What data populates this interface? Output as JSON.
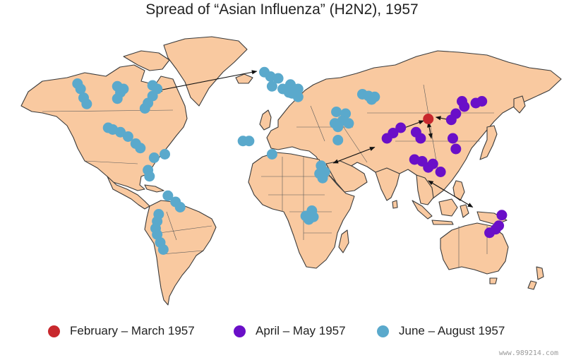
{
  "title": "Spread of “Asian Influenza” (H2N2), 1957",
  "colors": {
    "ocean": "#ffffff",
    "land": "#f9c9a0",
    "outline": "#3a3a3a",
    "feb_mar": "#c8282d",
    "apr_may": "#6a0fc8",
    "jun_aug": "#5aa9cc",
    "arrow": "#111111"
  },
  "legend": [
    {
      "key": "feb_mar",
      "label": "February – March 1957"
    },
    {
      "key": "apr_may",
      "label": "April – May 1957"
    },
    {
      "key": "jun_aug",
      "label": "June – August 1957"
    }
  ],
  "outbreaks": {
    "feb_mar": [
      {
        "lon": 105.0,
        "lat": 27.0
      }
    ],
    "apr_may": [
      {
        "lon": 136.0,
        "lat": 36.0
      },
      {
        "lon": 140.0,
        "lat": 37.0
      },
      {
        "lon": 127.0,
        "lat": 37.0
      },
      {
        "lon": 128.5,
        "lat": 34.0
      },
      {
        "lon": 123.0,
        "lat": 30.0
      },
      {
        "lon": 120.0,
        "lat": 26.5
      },
      {
        "lon": 87.0,
        "lat": 22.0
      },
      {
        "lon": 82.0,
        "lat": 19.0
      },
      {
        "lon": 78.0,
        "lat": 16.0
      },
      {
        "lon": 97.0,
        "lat": 19.5
      },
      {
        "lon": 100.0,
        "lat": 16.0
      },
      {
        "lon": 121.0,
        "lat": 16.0
      },
      {
        "lon": 123.0,
        "lat": 10.0
      },
      {
        "lon": 96.0,
        "lat": 4.0
      },
      {
        "lon": 101.0,
        "lat": 3.0
      },
      {
        "lon": 105.0,
        "lat": -0.5
      },
      {
        "lon": 108.0,
        "lat": 1.5
      },
      {
        "lon": 113.0,
        "lat": -3.0
      },
      {
        "lon": 153.0,
        "lat": -27.5
      },
      {
        "lon": 151.0,
        "lat": -33.5
      },
      {
        "lon": 149.0,
        "lat": -35.5
      },
      {
        "lon": 145.0,
        "lat": -37.5
      }
    ],
    "jun_aug": [
      {
        "lon": -75.0,
        "lat": 46.0
      },
      {
        "lon": -72.0,
        "lat": 44.0
      },
      {
        "lon": -124.0,
        "lat": 47.0
      },
      {
        "lon": -122.0,
        "lat": 44.0
      },
      {
        "lon": -120.0,
        "lat": 39.0
      },
      {
        "lon": -118.0,
        "lat": 35.5
      },
      {
        "lon": -98.0,
        "lat": 45.5
      },
      {
        "lon": -96.0,
        "lat": 42.0
      },
      {
        "lon": -98.0,
        "lat": 38.5
      },
      {
        "lon": -94.0,
        "lat": 44.0
      },
      {
        "lon": -75.0,
        "lat": 40.0
      },
      {
        "lon": -78.0,
        "lat": 36.0
      },
      {
        "lon": -80.0,
        "lat": 33.0
      },
      {
        "lon": -104.0,
        "lat": 22.0
      },
      {
        "lon": -101.0,
        "lat": 21.0
      },
      {
        "lon": -96.0,
        "lat": 19.5
      },
      {
        "lon": -91.0,
        "lat": 17.0
      },
      {
        "lon": -86.0,
        "lat": 13.0
      },
      {
        "lon": -83.0,
        "lat": 10.5
      },
      {
        "lon": -74.0,
        "lat": 5.0
      },
      {
        "lon": -67.0,
        "lat": 7.0
      },
      {
        "lon": -78.0,
        "lat": -2.0
      },
      {
        "lon": -77.0,
        "lat": -5.5
      },
      {
        "lon": -65.0,
        "lat": -16.5
      },
      {
        "lon": -60.0,
        "lat": -20.0
      },
      {
        "lon": -57.0,
        "lat": -23.0
      },
      {
        "lon": -71.0,
        "lat": -27.0
      },
      {
        "lon": -72.0,
        "lat": -31.0
      },
      {
        "lon": -73.0,
        "lat": -35.0
      },
      {
        "lon": -72.0,
        "lat": -38.5
      },
      {
        "lon": -70.0,
        "lat": -43.0
      },
      {
        "lon": -68.0,
        "lat": -47.0
      },
      {
        "lon": -2.0,
        "lat": 53.5
      },
      {
        "lon": 2.0,
        "lat": 51.0
      },
      {
        "lon": 7.0,
        "lat": 50.0
      },
      {
        "lon": 3.0,
        "lat": 45.5
      },
      {
        "lon": 15.0,
        "lat": 46.5
      },
      {
        "lon": 10.0,
        "lat": 44.0
      },
      {
        "lon": 14.0,
        "lat": 42.0
      },
      {
        "lon": 20.0,
        "lat": 44.0
      },
      {
        "lon": 20.0,
        "lat": 39.5
      },
      {
        "lon": 16.0,
        "lat": 41.5
      },
      {
        "lon": 45.0,
        "lat": 31.0
      },
      {
        "lon": 51.0,
        "lat": 30.0
      },
      {
        "lon": 49.0,
        "lat": 26.0
      },
      {
        "lon": 53.0,
        "lat": 24.5
      },
      {
        "lon": 44.0,
        "lat": 24.5
      },
      {
        "lon": 46.0,
        "lat": 22.5
      },
      {
        "lon": 46.0,
        "lat": 15.0
      },
      {
        "lon": 62.0,
        "lat": 41.0
      },
      {
        "lon": 66.0,
        "lat": 40.0
      },
      {
        "lon": 70.0,
        "lat": 39.5
      },
      {
        "lon": 68.0,
        "lat": 38.0
      },
      {
        "lon": -16.0,
        "lat": 14.5
      },
      {
        "lon": -12.0,
        "lat": 14.5
      },
      {
        "lon": 3.0,
        "lat": 7.0
      },
      {
        "lon": 35.0,
        "lat": 0.5
      },
      {
        "lon": 37.5,
        "lat": -3.0
      },
      {
        "lon": 34.0,
        "lat": -4.0
      },
      {
        "lon": 36.0,
        "lat": -6.5
      },
      {
        "lon": 29.0,
        "lat": -25.0
      },
      {
        "lon": 25.0,
        "lat": -28.0
      },
      {
        "lon": 27.0,
        "lat": -30.0
      },
      {
        "lon": 30.0,
        "lat": -28.5
      }
    ]
  },
  "routes": [
    {
      "from": {
        "lon": -72.0,
        "lat": 43.0
      },
      "to": {
        "lon": -7.0,
        "lat": 54.0
      }
    },
    {
      "from": {
        "lon": 102.0,
        "lat": 26.0
      },
      "to": {
        "lon": 80.0,
        "lat": 19.0
      }
    },
    {
      "from": {
        "lon": 105.0,
        "lat": 25.0
      },
      "to": {
        "lon": 107.0,
        "lat": 16.0
      }
    },
    {
      "from": {
        "lon": 110.0,
        "lat": 28.0
      },
      "to": {
        "lon": 122.0,
        "lat": 26.0
      }
    },
    {
      "from": {
        "lon": 43.0,
        "lat": 2.0
      },
      "to": {
        "lon": 70.0,
        "lat": 11.0
      }
    },
    {
      "from": {
        "lon": 105.0,
        "lat": -8.0
      },
      "to": {
        "lon": 134.0,
        "lat": -23.0
      }
    }
  ],
  "watermark": "www.989214.com"
}
